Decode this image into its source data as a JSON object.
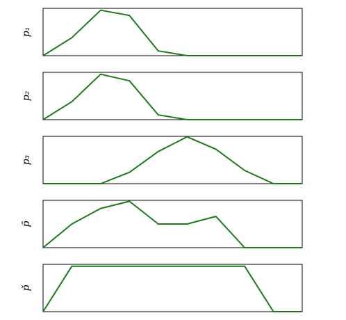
{
  "chart_data": [
    {
      "type": "line",
      "ylabel": "p₁",
      "x": [
        0,
        1,
        2,
        3,
        4,
        5,
        6,
        7,
        8,
        9
      ],
      "values": [
        0,
        0.38,
        0.96,
        0.85,
        0.1,
        0.0,
        0.0,
        0.0,
        0.0,
        0.0
      ],
      "ylim": [
        0,
        1
      ],
      "grid": false,
      "color": "#1a7a1a"
    },
    {
      "type": "line",
      "ylabel": "p₂",
      "x": [
        0,
        1,
        2,
        3,
        4,
        5,
        6,
        7,
        8,
        9
      ],
      "values": [
        0,
        0.38,
        0.96,
        0.82,
        0.1,
        0.0,
        0.0,
        0.0,
        0.0,
        0.0
      ],
      "ylim": [
        0,
        1
      ],
      "grid": false,
      "color": "#1a7a1a"
    },
    {
      "type": "line",
      "ylabel": "p₃",
      "x": [
        0,
        1,
        2,
        3,
        4,
        5,
        6,
        7,
        8,
        9
      ],
      "values": [
        0,
        0.0,
        0.0,
        0.24,
        0.68,
        0.99,
        0.73,
        0.28,
        0.0,
        0.0
      ],
      "ylim": [
        0,
        1
      ],
      "grid": false,
      "color": "#1a7a1a"
    },
    {
      "type": "line",
      "ylabel": "p̄",
      "x": [
        0,
        1,
        2,
        3,
        4,
        5,
        6,
        7,
        8,
        9
      ],
      "values": [
        0,
        0.5,
        0.83,
        0.98,
        0.5,
        0.5,
        0.66,
        0.0,
        0.0,
        0.0
      ],
      "ylim": [
        0,
        1
      ],
      "grid": false,
      "color": "#1a7a1a"
    },
    {
      "type": "line",
      "ylabel": "p̌",
      "x": [
        0,
        1,
        2,
        3,
        4,
        5,
        6,
        7,
        8,
        9
      ],
      "values": [
        0,
        0.96,
        0.96,
        0.96,
        0.96,
        0.96,
        0.96,
        0.96,
        0.0,
        0.0
      ],
      "ylim": [
        0,
        1
      ],
      "grid": false,
      "color": "#1a7a1a"
    }
  ]
}
